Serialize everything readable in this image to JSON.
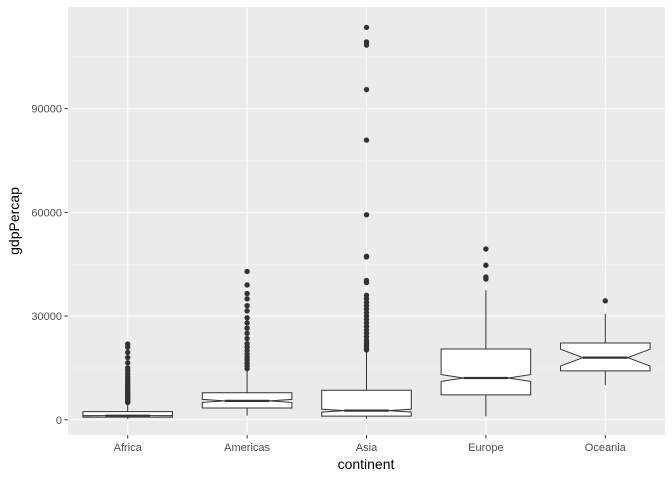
{
  "chart_data": {
    "type": "boxplot",
    "notched": true,
    "xlabel": "continent",
    "ylabel": "gdpPercap",
    "categories": [
      "Africa",
      "Americas",
      "Asia",
      "Europe",
      "Oceania"
    ],
    "y_ticks": [
      0,
      30000,
      60000,
      90000
    ],
    "y_tick_labels": [
      "0",
      "30000",
      "60000",
      "90000"
    ],
    "ylim": [
      -4400,
      119400
    ],
    "grid": true,
    "legend": "none",
    "colors": {
      "panel_bg": "#ebebeb",
      "grid_major": "#ffffff",
      "grid_minor": "#f5f5f5",
      "box_fill": "#ffffff",
      "box_stroke": "#333333",
      "outlier": "#333333"
    },
    "boxes": [
      {
        "category": "Africa",
        "whisker_low": 241,
        "q1": 761,
        "median": 1192,
        "q3": 2377,
        "whisker_high": 4787,
        "notch": [
          1128,
          1256
        ],
        "outliers": [
          5000,
          5300,
          5600,
          5900,
          6200,
          6600,
          7000,
          7400,
          7800,
          8300,
          8800,
          9300,
          9800,
          10400,
          11000,
          11700,
          12500,
          13300,
          14200,
          15000,
          16500,
          18000,
          19500,
          21000,
          21900
        ]
      },
      {
        "category": "Americas",
        "whisker_low": 1202,
        "q1": 3428,
        "median": 5466,
        "q3": 7830,
        "whisker_high": 14400,
        "notch": [
          5020,
          5910
        ],
        "outliers": [
          14800,
          15600,
          16400,
          17300,
          18100,
          19000,
          20000,
          21000,
          22000,
          23500,
          25000,
          26500,
          28000,
          29500,
          31500,
          33000,
          35000,
          36500,
          39000,
          42900
        ]
      },
      {
        "category": "Asia",
        "whisker_low": 331,
        "q1": 1057,
        "median": 2646,
        "q3": 8549,
        "whisker_high": 19700,
        "notch": [
          2220,
          3070
        ],
        "outliers": [
          20200,
          20800,
          21500,
          22200,
          23000,
          24000,
          25000,
          26000,
          27000,
          28000,
          29000,
          30000,
          31000,
          32000,
          33000,
          34000,
          35000,
          36000,
          39700,
          40300,
          47100,
          47300,
          59300,
          80900,
          95500,
          108400,
          109300,
          113500
        ]
      },
      {
        "category": "Europe",
        "whisker_low": 974,
        "q1": 7213,
        "median": 12082,
        "q3": 20461,
        "whisker_high": 37500,
        "notch": [
          11100,
          13070
        ],
        "outliers": [
          40700,
          41300,
          44700,
          49400
        ]
      },
      {
        "category": "Oceania",
        "whisker_low": 10040,
        "q1": 14142,
        "median": 17983,
        "q3": 22214,
        "whisker_high": 30700,
        "notch": [
          15540,
          20430
        ],
        "outliers": [
          34400
        ]
      }
    ]
  }
}
